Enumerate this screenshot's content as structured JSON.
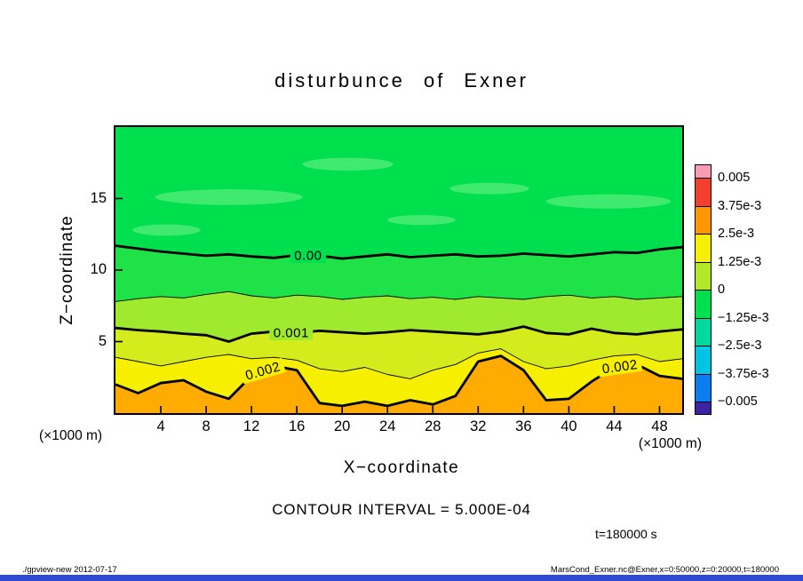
{
  "title": "disturbunce of Exner",
  "axes": {
    "x_label": "X−coordinate",
    "y_label": "Z−coordinate",
    "x_unit": "(×1000 m)",
    "y_unit": "(×1000 m)",
    "x_ticks": [
      4,
      8,
      12,
      16,
      20,
      24,
      28,
      32,
      36,
      40,
      44,
      48
    ],
    "y_ticks": [
      5,
      10,
      15
    ]
  },
  "annotations": {
    "contour_interval": "CONTOUR INTERVAL = 5.000E-04",
    "time": "t=180000 s"
  },
  "footer": {
    "left": "./gpview-new  2012-07-17",
    "right": "MarsCond_Exner.nc@Exner,x=0:50000,z=0:20000,t=180000"
  },
  "colorbar": {
    "labels": [
      "0.005",
      "3.75e-3",
      "2.5e-3",
      "1.25e-3",
      "0",
      "−1.25e-3",
      "−2.5e-3",
      "−3.75e-3",
      "−0.005"
    ],
    "colors": [
      "#f79bb6",
      "#f23f2e",
      "#ff9500",
      "#f7ef00",
      "#b2e828",
      "#00df4e",
      "#00d89e",
      "#00c4e4",
      "#0b7df0",
      "#3b23a4"
    ]
  },
  "chart_data": {
    "type": "contour",
    "title": "disturbunce of Exner",
    "xlabel": "X−coordinate (×1000 m)",
    "ylabel": "Z−coordinate (×1000 m)",
    "x_range": [
      0,
      50
    ],
    "z_range": [
      0,
      20
    ],
    "contour_interval": 0.0005,
    "x_step": 2,
    "bands": [
      "#00df4e",
      "#1ee247",
      "#9fe92e",
      "#d4ec1c",
      "#f6ef00",
      "#ffab00"
    ],
    "contours": [
      {
        "level": 0.0,
        "width": 2.8,
        "z": [
          11.7,
          11.5,
          11.3,
          11.15,
          11.0,
          11.1,
          10.95,
          10.85,
          11.05,
          11.0,
          10.8,
          10.95,
          11.1,
          10.9,
          11.0,
          11.1,
          10.95,
          11.0,
          11.15,
          11.05,
          10.95,
          11.1,
          11.25,
          11.2,
          11.45,
          11.6
        ]
      },
      {
        "level": 0.0005,
        "width": 0.9,
        "z": [
          7.8,
          8.0,
          8.15,
          8.05,
          8.3,
          8.5,
          8.2,
          8.05,
          8.25,
          8.15,
          7.95,
          8.1,
          8.2,
          8.0,
          8.1,
          7.95,
          8.15,
          8.05,
          7.95,
          8.15,
          8.25,
          8.05,
          8.15,
          7.95,
          8.05,
          8.15
        ]
      },
      {
        "level": 0.001,
        "width": 2.8,
        "z": [
          5.95,
          5.8,
          5.7,
          5.55,
          5.45,
          5.0,
          5.55,
          5.7,
          5.6,
          5.75,
          5.65,
          5.55,
          5.65,
          5.8,
          5.7,
          5.6,
          5.5,
          5.7,
          6.05,
          5.6,
          5.5,
          5.9,
          5.6,
          5.5,
          5.7,
          5.85
        ]
      },
      {
        "level": 0.0015,
        "width": 0.9,
        "z": [
          3.9,
          3.6,
          3.3,
          3.6,
          3.9,
          4.1,
          3.8,
          3.9,
          3.7,
          3.1,
          2.9,
          3.2,
          2.7,
          2.4,
          3.0,
          3.4,
          4.2,
          4.5,
          3.6,
          3.1,
          3.3,
          3.7,
          4.0,
          4.1,
          3.6,
          3.8
        ]
      },
      {
        "level": 0.002,
        "width": 2.8,
        "z": [
          2.0,
          1.4,
          2.1,
          2.3,
          1.5,
          1.0,
          2.6,
          3.3,
          3.0,
          0.7,
          0.5,
          0.8,
          0.5,
          0.9,
          0.6,
          1.2,
          3.6,
          4.0,
          3.0,
          0.9,
          1.0,
          2.2,
          3.2,
          3.4,
          2.6,
          2.4
        ]
      }
    ],
    "labels": [
      {
        "text": "0.00",
        "contour": 0,
        "x": 17,
        "rotate": 0,
        "bg": "#00df4e"
      },
      {
        "text": "0.001",
        "contour": 2,
        "x": 15.5,
        "rotate": 0,
        "bg": "#9fe92e"
      },
      {
        "text": "0.002",
        "contour": 4,
        "x": 13,
        "rotate": -16,
        "bg": "#f6ef00"
      },
      {
        "text": "0.002",
        "contour": 4,
        "x": 44.5,
        "rotate": -8,
        "bg": "#f6ef00"
      }
    ],
    "patches": [
      {
        "cx": 10,
        "cy": 15.1,
        "rx": 6.5,
        "ry": 0.55,
        "color": "#40ea6e"
      },
      {
        "cx": 20.5,
        "cy": 17.4,
        "rx": 4.0,
        "ry": 0.45,
        "color": "#40ea6e"
      },
      {
        "cx": 33,
        "cy": 15.7,
        "rx": 3.5,
        "ry": 0.4,
        "color": "#40ea6e"
      },
      {
        "cx": 43.5,
        "cy": 14.8,
        "rx": 5.5,
        "ry": 0.5,
        "color": "#40ea6e"
      },
      {
        "cx": 4.5,
        "cy": 12.8,
        "rx": 3.0,
        "ry": 0.4,
        "color": "#40ea6e"
      },
      {
        "cx": 27,
        "cy": 13.5,
        "rx": 3.0,
        "ry": 0.35,
        "color": "#40ea6e"
      }
    ]
  }
}
